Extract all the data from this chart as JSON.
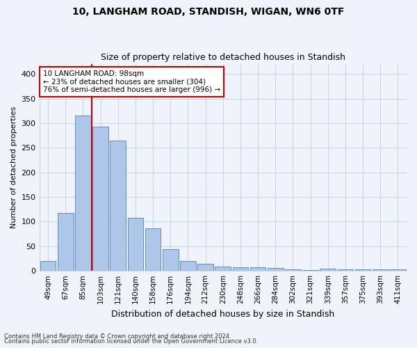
{
  "title1": "10, LANGHAM ROAD, STANDISH, WIGAN, WN6 0TF",
  "title2": "Size of property relative to detached houses in Standish",
  "xlabel": "Distribution of detached houses by size in Standish",
  "ylabel": "Number of detached properties",
  "categories": [
    "49sqm",
    "67sqm",
    "85sqm",
    "103sqm",
    "121sqm",
    "140sqm",
    "158sqm",
    "176sqm",
    "194sqm",
    "212sqm",
    "230sqm",
    "248sqm",
    "266sqm",
    "284sqm",
    "302sqm",
    "321sqm",
    "339sqm",
    "357sqm",
    "375sqm",
    "393sqm",
    "411sqm"
  ],
  "values": [
    20,
    118,
    315,
    293,
    265,
    108,
    87,
    44,
    20,
    15,
    9,
    8,
    8,
    6,
    3,
    2,
    4,
    3,
    3,
    3,
    3
  ],
  "bar_color": "#aec6e8",
  "bar_edge_color": "#5b8fc9",
  "vline_color": "#cc0000",
  "annotation_line1": "10 LANGHAM ROAD: 98sqm",
  "annotation_line2": "← 23% of detached houses are smaller (304)",
  "annotation_line3": "76% of semi-detached houses are larger (996) →",
  "annotation_box_color": "#cc0000",
  "ylim": [
    0,
    420
  ],
  "yticks": [
    0,
    50,
    100,
    150,
    200,
    250,
    300,
    350,
    400
  ],
  "background_color": "#f0f4fa",
  "grid_color": "#c8d8e8",
  "footer1": "Contains HM Land Registry data © Crown copyright and database right 2024.",
  "footer2": "Contains public sector information licensed under the Open Government Licence v3.0."
}
